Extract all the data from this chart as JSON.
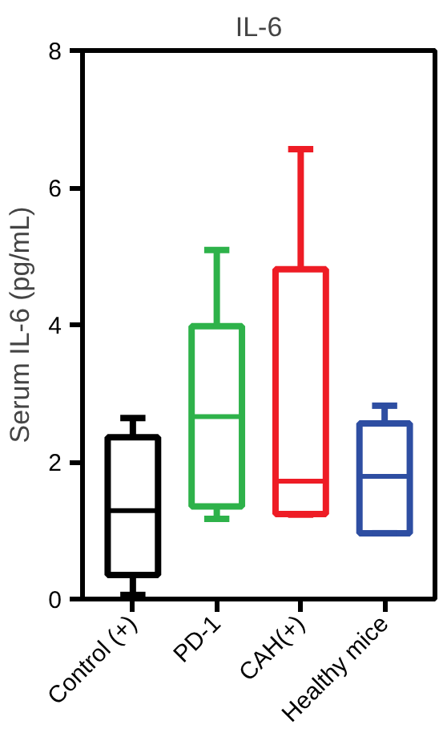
{
  "chart_data": {
    "type": "box",
    "title": "IL-6",
    "ylabel": "Serum IL-6 (pg/mL)",
    "categories": [
      "Control (+)",
      "PD-1",
      "CAH(+)",
      "Healthy mice"
    ],
    "colors": [
      "#000000",
      "#2eb24a",
      "#ee1c25",
      "#2e4ea2"
    ],
    "boxes": [
      {
        "low": 0.06,
        "q1": 0.35,
        "median": 1.29,
        "q3": 2.36,
        "high": 2.64
      },
      {
        "low": 1.17,
        "q1": 1.35,
        "median": 2.66,
        "q3": 3.98,
        "high": 5.09
      },
      {
        "low": 1.23,
        "q1": 1.24,
        "median": 1.72,
        "q3": 4.81,
        "high": 6.56
      },
      {
        "low": 0.96,
        "q1": 0.96,
        "median": 1.79,
        "q3": 2.56,
        "high": 2.82
      }
    ],
    "ylim": [
      0,
      8
    ],
    "yticks": [
      0,
      2,
      4,
      6,
      8
    ],
    "grid": false
  }
}
